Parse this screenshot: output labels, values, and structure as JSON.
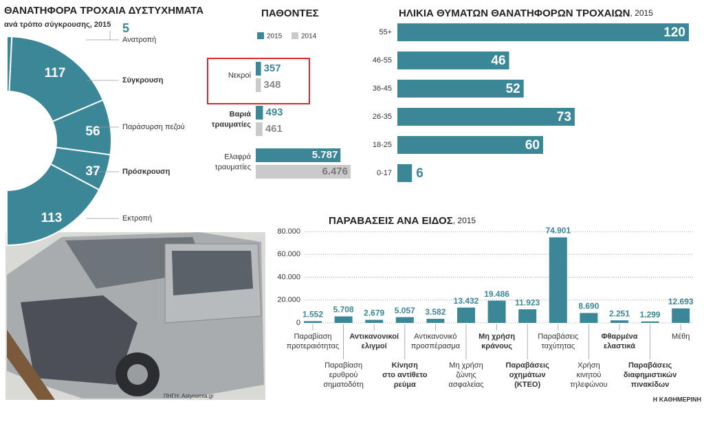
{
  "chart_data": [
    {
      "type": "donut",
      "title": "ΘΑΝΑΤΗΦΟΡΑ ΤΡΟΧΑΙΑ ΔΥΣΤΥΧΗΜΑΤΑ",
      "subtitle": "ανά τρόπο σύγκρουσης, 2015",
      "categories": [
        "Ανατροπή",
        "Σύγκρουση",
        "Παράσυρση πεζού",
        "Πρόσκρουση",
        "Εκτροπή"
      ],
      "values": [
        5,
        117,
        56,
        37,
        113
      ],
      "bold": [
        false,
        true,
        false,
        true,
        false
      ],
      "color": "#3b8797"
    },
    {
      "type": "grouped-hbar",
      "title": "ΠΑΘΟΝΤΕΣ",
      "categories": [
        [
          "Νεκροί"
        ],
        [
          "Βαριά",
          "τραυματίες"
        ],
        [
          "Ελαφρά",
          "τραυματίες"
        ]
      ],
      "series": [
        {
          "name": "2015",
          "color": "#3b8797",
          "values": [
            357,
            493,
            5787
          ],
          "value_labels": [
            "357",
            "493",
            "5.787"
          ]
        },
        {
          "name": "2014",
          "color": "#cacaca",
          "values": [
            348,
            461,
            6476
          ],
          "value_labels": [
            "348",
            "461",
            "6.476"
          ]
        }
      ],
      "highlight": 0
    },
    {
      "type": "hbar",
      "title": "ΗΛΙΚΙΑ ΘΥΜΑΤΩΝ ΘΑΝΑΤΗΦΟΡΩΝ ΤΡΟΧΑΙΩΝ",
      "title_suffix": ", 2015",
      "categories": [
        "55+",
        "46-55",
        "36-45",
        "26-35",
        "18-25",
        "0-17"
      ],
      "values": [
        120,
        46,
        52,
        73,
        60,
        6
      ],
      "color": "#3b8797"
    },
    {
      "type": "bar",
      "title": "ΠΑΡΑΒΑΣΕΙΣ ΑΝΑ ΕΙΔΟΣ",
      "title_suffix": ", 2015",
      "categories": [
        [
          "Παραβίαση",
          "προτεραιότητας"
        ],
        [
          "Παραβίαση",
          "ερυθρού",
          "σηματοδότη"
        ],
        [
          "Αντικανονικοί",
          "ελιγμοί"
        ],
        [
          "Κίνηση",
          "στο αντίθετο",
          "ρεύμα"
        ],
        [
          "Αντικανονικό",
          "προσπέρασμα"
        ],
        [
          "Μη χρήση",
          "ζώνης",
          "ασφαλείας"
        ],
        [
          "Μη χρήση",
          "κράνους"
        ],
        [
          "Παραβάσεις",
          "οχημάτων",
          "(ΚΤΕΟ)"
        ],
        [
          "Παραβάσεις",
          "ταχύτητας"
        ],
        [
          "Χρήση",
          "κινητού",
          "τηλεφώνου"
        ],
        [
          "Φθαρμένα",
          "ελαστικά"
        ],
        [
          "Παραβάσεις",
          "διαφημιστικών",
          "πινακίδων"
        ],
        [
          "Μέθη"
        ]
      ],
      "bold": [
        false,
        false,
        true,
        true,
        false,
        false,
        true,
        true,
        false,
        false,
        true,
        true,
        false
      ],
      "values": [
        1552,
        5708,
        2679,
        5057,
        3582,
        13432,
        19486,
        11923,
        74901,
        8690,
        2251,
        1299,
        12693
      ],
      "value_labels": [
        "1.552",
        "5.708",
        "2.679",
        "5.057",
        "3.582",
        "13.432",
        "19.486",
        "11.923",
        "74.901",
        "8.690",
        "2.251",
        "1.299",
        "12.693"
      ],
      "ylim": [
        0,
        80000
      ],
      "yticks": [
        0,
        {
          "value": 20000,
          "label": "20.000"
        },
        {
          "value": 40000,
          "label": "40.000"
        },
        {
          "value": 60000,
          "label": "60.000"
        },
        {
          "value": 80000,
          "label": "80.000"
        }
      ],
      "grid": true,
      "color": "#3b8797"
    }
  ],
  "footer": {
    "source": "ΠΗΓΗ: Astynomia.gr",
    "publisher": "Η ΚΑΘΗΜΕΡΙΝΗ"
  }
}
